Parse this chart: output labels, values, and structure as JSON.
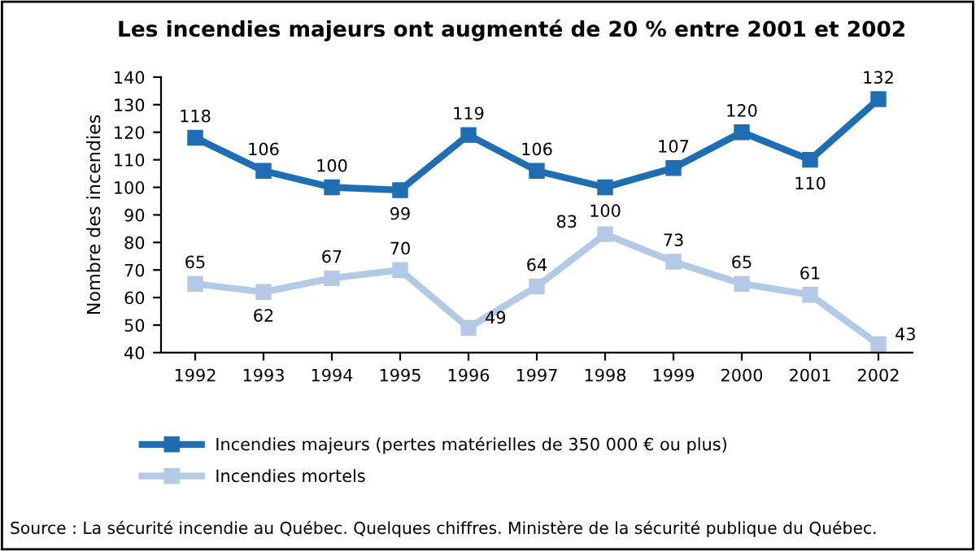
{
  "chart_data": {
    "type": "line",
    "title": "Les incendies majeurs ont augmenté de 20 % entre 2001 et 2002",
    "ylabel": "Nombre des incendies",
    "categories": [
      "1992",
      "1993",
      "1994",
      "1995",
      "1996",
      "1997",
      "1998",
      "1999",
      "2000",
      "2001",
      "2002"
    ],
    "series": [
      {
        "name": "Incendies majeurs (pertes matérielles de 350 000 € ou plus)",
        "color": "#1f6db3",
        "values": [
          118,
          106,
          100,
          99,
          119,
          106,
          100,
          107,
          120,
          110,
          132
        ]
      },
      {
        "name": "Incendies mortels",
        "color": "#b4c9e6",
        "values": [
          65,
          62,
          67,
          70,
          49,
          64,
          83,
          73,
          65,
          61,
          43
        ]
      }
    ],
    "ylim": [
      40,
      140
    ],
    "yticks": [
      40,
      50,
      60,
      70,
      80,
      90,
      100,
      110,
      120,
      130,
      140
    ],
    "grid": false,
    "legend": "bottom",
    "marker": "square",
    "line_style": "solid",
    "data_labels": true,
    "annotations": [
      "Source : La sécurité incendie au Québec. Quelques chiffres. Ministère de la sécurité publique du Québec."
    ]
  }
}
